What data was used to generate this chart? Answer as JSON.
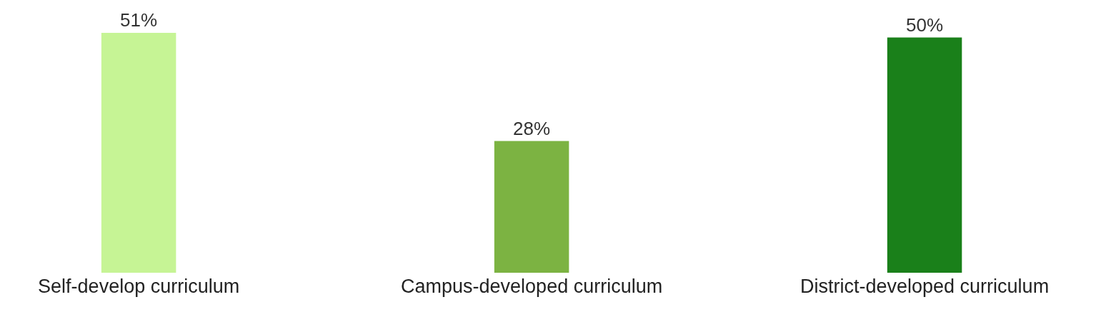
{
  "chart_data": {
    "type": "bar",
    "categories": [
      "Self-develop curriculum",
      "Campus-developed curriculum",
      "District-developed curriculum"
    ],
    "values": [
      51,
      28,
      50
    ],
    "colors": [
      "#c6f495",
      "#7cb342",
      "#1a801a"
    ],
    "value_labels": [
      "51%",
      "28%",
      "50%"
    ]
  }
}
